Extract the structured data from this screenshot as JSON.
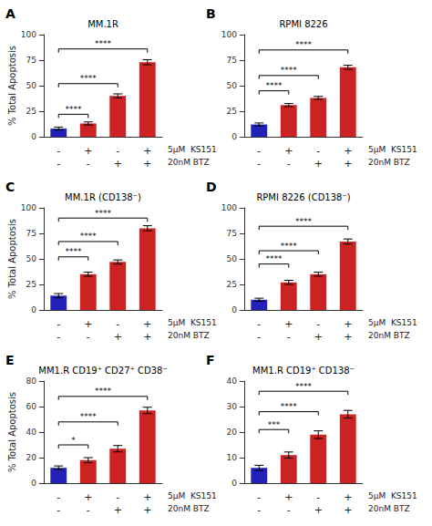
{
  "chart_data": [
    {
      "type": "bar",
      "panel": "A",
      "title": "MM.1R",
      "ylabel": "% Total Apoptosis",
      "categories": [
        "-\n-",
        "+\n-",
        "-\n+",
        "+\n+"
      ],
      "row_labels": [
        "5μM  KS151",
        "20nM BTZ"
      ],
      "values": [
        8,
        13,
        40,
        73
      ],
      "errors": [
        1.5,
        1.5,
        2.0,
        2.5
      ],
      "colors": [
        "#2222bb",
        "#cc2222",
        "#cc2222",
        "#cc2222"
      ],
      "ylim": [
        0,
        100
      ],
      "yticks": [
        0,
        25,
        50,
        75,
        100
      ],
      "brackets": [
        {
          "between": [
            "-\n-",
            "+\n-"
          ],
          "y": 22,
          "label": "****"
        },
        {
          "between": [
            "-\n-",
            "-\n+"
          ],
          "y": 52,
          "label": "****"
        },
        {
          "between": [
            "-\n-",
            "+\n+"
          ],
          "y": 86,
          "label": "****"
        }
      ],
      "grid": false
    },
    {
      "type": "bar",
      "panel": "B",
      "title": "RPMI 8226",
      "categories": [
        "-\n-",
        "+\n-",
        "-\n+",
        "+\n+"
      ],
      "row_labels": [
        "5μM  KS151",
        "20nM BTZ"
      ],
      "values": [
        12,
        31,
        38,
        68
      ],
      "errors": [
        1.5,
        1.5,
        1.5,
        2.0
      ],
      "colors": [
        "#2222bb",
        "#cc2222",
        "#cc2222",
        "#cc2222"
      ],
      "ylim": [
        0,
        100
      ],
      "yticks": [
        0,
        25,
        50,
        75,
        100
      ],
      "brackets": [
        {
          "between": [
            "-\n-",
            "+\n-"
          ],
          "y": 45,
          "label": "****"
        },
        {
          "between": [
            "-\n-",
            "-\n+"
          ],
          "y": 60,
          "label": "****"
        },
        {
          "between": [
            "-\n-",
            "+\n+"
          ],
          "y": 85,
          "label": "****"
        }
      ],
      "grid": false
    },
    {
      "type": "bar",
      "panel": "C",
      "title": "MM.1R (CD138⁻)",
      "ylabel": "% Total Apoptosis",
      "categories": [
        "-\n-",
        "+\n-",
        "-\n+",
        "+\n+"
      ],
      "row_labels": [
        "5μM  KS151",
        "20nM BTZ"
      ],
      "values": [
        14,
        35,
        47,
        80
      ],
      "errors": [
        2.0,
        2.0,
        2.0,
        2.5
      ],
      "colors": [
        "#2222bb",
        "#cc2222",
        "#cc2222",
        "#cc2222"
      ],
      "ylim": [
        0,
        100
      ],
      "yticks": [
        0,
        25,
        50,
        75,
        100
      ],
      "brackets": [
        {
          "between": [
            "-\n-",
            "+\n-"
          ],
          "y": 52,
          "label": "****"
        },
        {
          "between": [
            "-\n-",
            "-\n+"
          ],
          "y": 67,
          "label": "****"
        },
        {
          "between": [
            "-\n-",
            "+\n+"
          ],
          "y": 90,
          "label": "****"
        }
      ],
      "grid": false
    },
    {
      "type": "bar",
      "panel": "D",
      "title": "RPMI 8226 (CD138⁻)",
      "categories": [
        "-\n-",
        "+\n-",
        "-\n+",
        "+\n+"
      ],
      "row_labels": [
        "5μM  KS151",
        "20nM BTZ"
      ],
      "values": [
        10,
        27,
        35,
        67
      ],
      "errors": [
        1.5,
        2.0,
        2.0,
        2.5
      ],
      "colors": [
        "#2222bb",
        "#cc2222",
        "#cc2222",
        "#cc2222"
      ],
      "ylim": [
        0,
        100
      ],
      "yticks": [
        0,
        25,
        50,
        75,
        100
      ],
      "brackets": [
        {
          "between": [
            "-\n-",
            "+\n-"
          ],
          "y": 45,
          "label": "****"
        },
        {
          "between": [
            "-\n-",
            "-\n+"
          ],
          "y": 58,
          "label": "****"
        },
        {
          "between": [
            "-\n-",
            "+\n+"
          ],
          "y": 82,
          "label": "****"
        }
      ],
      "grid": false
    },
    {
      "type": "bar",
      "panel": "E",
      "title": "MM1.R CD19⁺ CD27⁺ CD38⁻",
      "ylabel": "% Total Apoptosis",
      "categories": [
        "-\n-",
        "+\n-",
        "-\n+",
        "+\n+"
      ],
      "row_labels": [
        "5μM  KS151",
        "20nM BTZ"
      ],
      "values": [
        12,
        18,
        27,
        57
      ],
      "errors": [
        1.5,
        2.0,
        2.5,
        2.5
      ],
      "colors": [
        "#2222bb",
        "#cc2222",
        "#cc2222",
        "#cc2222"
      ],
      "ylim": [
        0,
        80
      ],
      "yticks": [
        0,
        20,
        40,
        60,
        80
      ],
      "brackets": [
        {
          "between": [
            "-\n-",
            "+\n-"
          ],
          "y": 30,
          "label": "*"
        },
        {
          "between": [
            "-\n-",
            "-\n+"
          ],
          "y": 48,
          "label": "****"
        },
        {
          "between": [
            "-\n-",
            "+\n+"
          ],
          "y": 68,
          "label": "****"
        }
      ],
      "grid": false
    },
    {
      "type": "bar",
      "panel": "F",
      "title": "MM1.R CD19⁺ CD138⁻",
      "categories": [
        "-\n-",
        "+\n-",
        "-\n+",
        "+\n+"
      ],
      "row_labels": [
        "5μM  KS151",
        "20nM BTZ"
      ],
      "values": [
        6,
        11,
        19,
        27
      ],
      "errors": [
        1.0,
        1.2,
        1.5,
        1.5
      ],
      "colors": [
        "#2222bb",
        "#cc2222",
        "#cc2222",
        "#cc2222"
      ],
      "ylim": [
        0,
        40
      ],
      "yticks": [
        0,
        10,
        20,
        30,
        40
      ],
      "brackets": [
        {
          "between": [
            "-\n-",
            "+\n-"
          ],
          "y": 21,
          "label": "***"
        },
        {
          "between": [
            "-\n-",
            "-\n+"
          ],
          "y": 28,
          "label": "****"
        },
        {
          "between": [
            "-\n-",
            "+\n+"
          ],
          "y": 36,
          "label": "****"
        }
      ],
      "grid": false
    }
  ]
}
